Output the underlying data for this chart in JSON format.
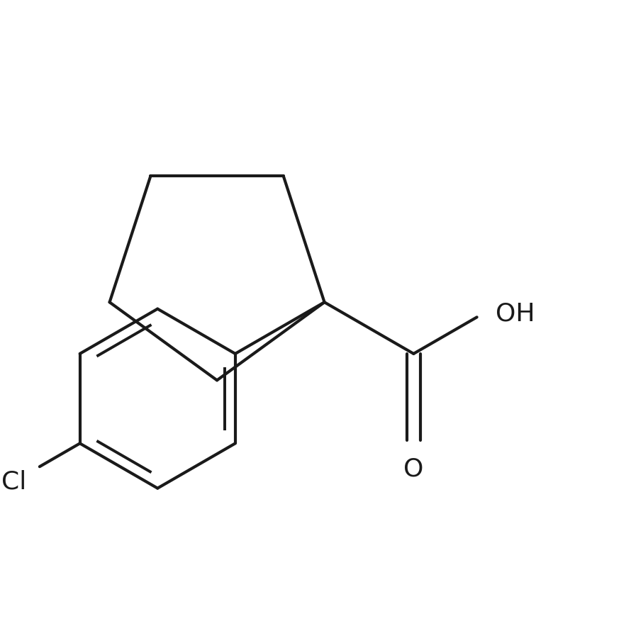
{
  "background_color": "#ffffff",
  "line_color": "#1a1a1a",
  "line_width": 3.0,
  "text_color": "#1a1a1a",
  "font_size_label": 26,
  "Cl_label": "Cl",
  "OH_label": "OH",
  "O_label": "O"
}
